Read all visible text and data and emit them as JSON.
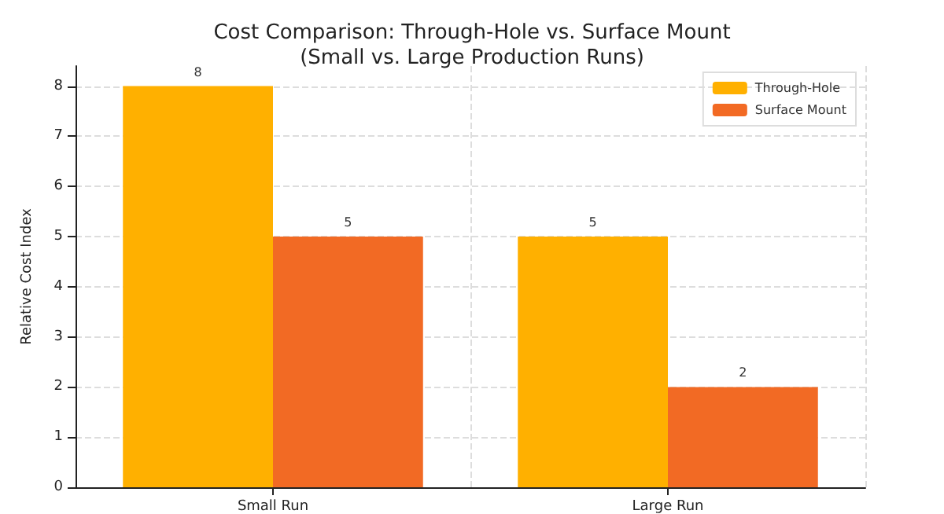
{
  "chart_data": {
    "type": "bar",
    "title": "Cost Comparison: Through-Hole vs. Surface Mount\n(Small vs. Large Production Runs)",
    "ylabel": "Relative Cost Index",
    "categories": [
      "Small Run",
      "Large Run"
    ],
    "series": [
      {
        "name": "Through-Hole",
        "color": "#ffb000",
        "values": [
          8,
          5
        ]
      },
      {
        "name": "Surface Mount",
        "color": "#f26a24",
        "values": [
          5,
          2
        ]
      }
    ],
    "ylim": [
      0,
      8.4
    ],
    "yticks": [
      0,
      1,
      2,
      3,
      4,
      5,
      6,
      7,
      8
    ],
    "grid": true,
    "legend": "top right",
    "data_labels": true
  }
}
